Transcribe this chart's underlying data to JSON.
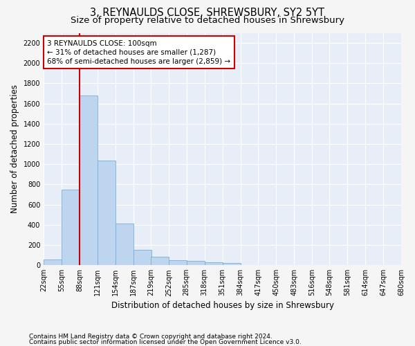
{
  "title": "3, REYNAULDS CLOSE, SHREWSBURY, SY2 5YT",
  "subtitle": "Size of property relative to detached houses in Shrewsbury",
  "xlabel": "Distribution of detached houses by size in Shrewsbury",
  "ylabel": "Number of detached properties",
  "footnote1": "Contains HM Land Registry data © Crown copyright and database right 2024.",
  "footnote2": "Contains public sector information licensed under the Open Government Licence v3.0.",
  "property_size": 100,
  "property_line_x": 88,
  "bin_edges": [
    22,
    55,
    88,
    121,
    154,
    187,
    219,
    252,
    285,
    318,
    351,
    384,
    417,
    450,
    483,
    516,
    548,
    581,
    614,
    647,
    680
  ],
  "bar_heights": [
    55,
    745,
    1680,
    1035,
    410,
    155,
    85,
    50,
    40,
    30,
    20,
    0,
    0,
    0,
    0,
    0,
    0,
    0,
    0,
    0
  ],
  "bar_color": "#bdd5ef",
  "bar_edgecolor": "#7aaed6",
  "line_color": "#cc0000",
  "annotation_line1": "3 REYNAULDS CLOSE: 100sqm",
  "annotation_line2": "← 31% of detached houses are smaller (1,287)",
  "annotation_line3": "68% of semi-detached houses are larger (2,859) →",
  "annotation_box_facecolor": "#ffffff",
  "annotation_box_edgecolor": "#cc0000",
  "ylim": [
    0,
    2300
  ],
  "yticks": [
    0,
    200,
    400,
    600,
    800,
    1000,
    1200,
    1400,
    1600,
    1800,
    2000,
    2200
  ],
  "plot_bg_color": "#e8eef8",
  "grid_color": "#ffffff",
  "fig_bg_color": "#f5f5f5",
  "title_fontsize": 10.5,
  "subtitle_fontsize": 9.5,
  "ylabel_fontsize": 8.5,
  "xlabel_fontsize": 8.5,
  "tick_fontsize": 7,
  "annot_fontsize": 7.5,
  "footnote_fontsize": 6.5
}
